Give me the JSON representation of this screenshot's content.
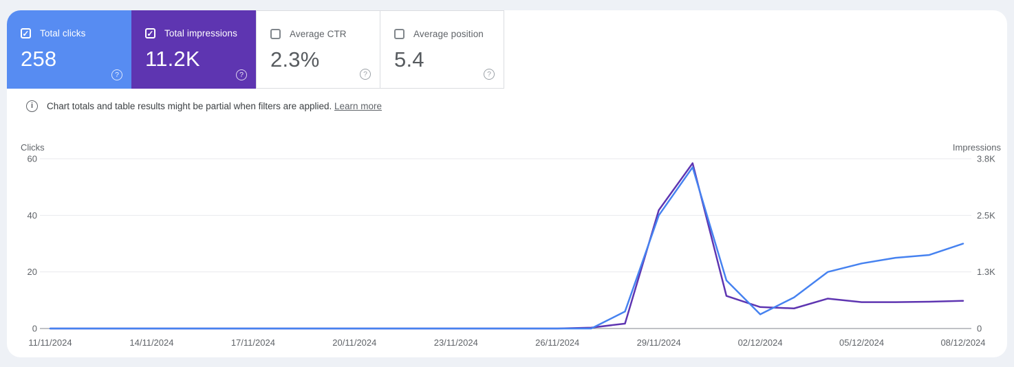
{
  "cards": [
    {
      "label": "Total clicks",
      "value": "258",
      "checked": true,
      "accent": "#578cf2",
      "help_label": "?"
    },
    {
      "label": "Total impressions",
      "value": "11.2K",
      "checked": true,
      "accent": "#5e35b1",
      "help_label": "?"
    },
    {
      "label": "Average CTR",
      "value": "2.3%",
      "checked": false,
      "accent": null,
      "help_label": "?"
    },
    {
      "label": "Average position",
      "value": "5.4",
      "checked": false,
      "accent": null,
      "help_label": "?"
    }
  ],
  "info": {
    "text": "Chart totals and table results might be partial when filters are applied.",
    "link_label": "Learn more"
  },
  "chart_data": {
    "type": "line",
    "x": [
      "11/11/2024",
      "12/11/2024",
      "13/11/2024",
      "14/11/2024",
      "15/11/2024",
      "16/11/2024",
      "17/11/2024",
      "18/11/2024",
      "19/11/2024",
      "20/11/2024",
      "21/11/2024",
      "22/11/2024",
      "23/11/2024",
      "24/11/2024",
      "25/11/2024",
      "26/11/2024",
      "27/11/2024",
      "28/11/2024",
      "29/11/2024",
      "30/11/2024",
      "01/12/2024",
      "02/12/2024",
      "03/12/2024",
      "04/12/2024",
      "05/12/2024",
      "06/12/2024",
      "07/12/2024",
      "08/12/2024"
    ],
    "x_tick_every": 3,
    "series": [
      {
        "name": "Total clicks",
        "axis": "left",
        "color": "#4682f0",
        "values": [
          0,
          0,
          0,
          0,
          0,
          0,
          0,
          0,
          0,
          0,
          0,
          0,
          0,
          0,
          0,
          0,
          0,
          6,
          40,
          57,
          17,
          5,
          11,
          20,
          23,
          25,
          26,
          30
        ]
      },
      {
        "name": "Total impressions",
        "axis": "right",
        "color": "#5e35b1",
        "values": [
          0,
          0,
          0,
          0,
          0,
          0,
          0,
          0,
          0,
          0,
          0,
          0,
          0,
          0,
          0,
          0,
          20,
          110,
          2650,
          3700,
          730,
          480,
          450,
          670,
          590,
          590,
          600,
          620
        ]
      }
    ],
    "y_left": {
      "label": "Clicks",
      "max": 60,
      "ticks": [
        "0",
        "20",
        "40",
        "60"
      ]
    },
    "y_right": {
      "label": "Impressions",
      "max": 3800,
      "ticks": [
        "0",
        "1.3K",
        "2.5K",
        "3.8K"
      ]
    },
    "grid": true,
    "legend": "none",
    "grid_color": "#e8eaed",
    "baseline_color": "#80868b"
  }
}
